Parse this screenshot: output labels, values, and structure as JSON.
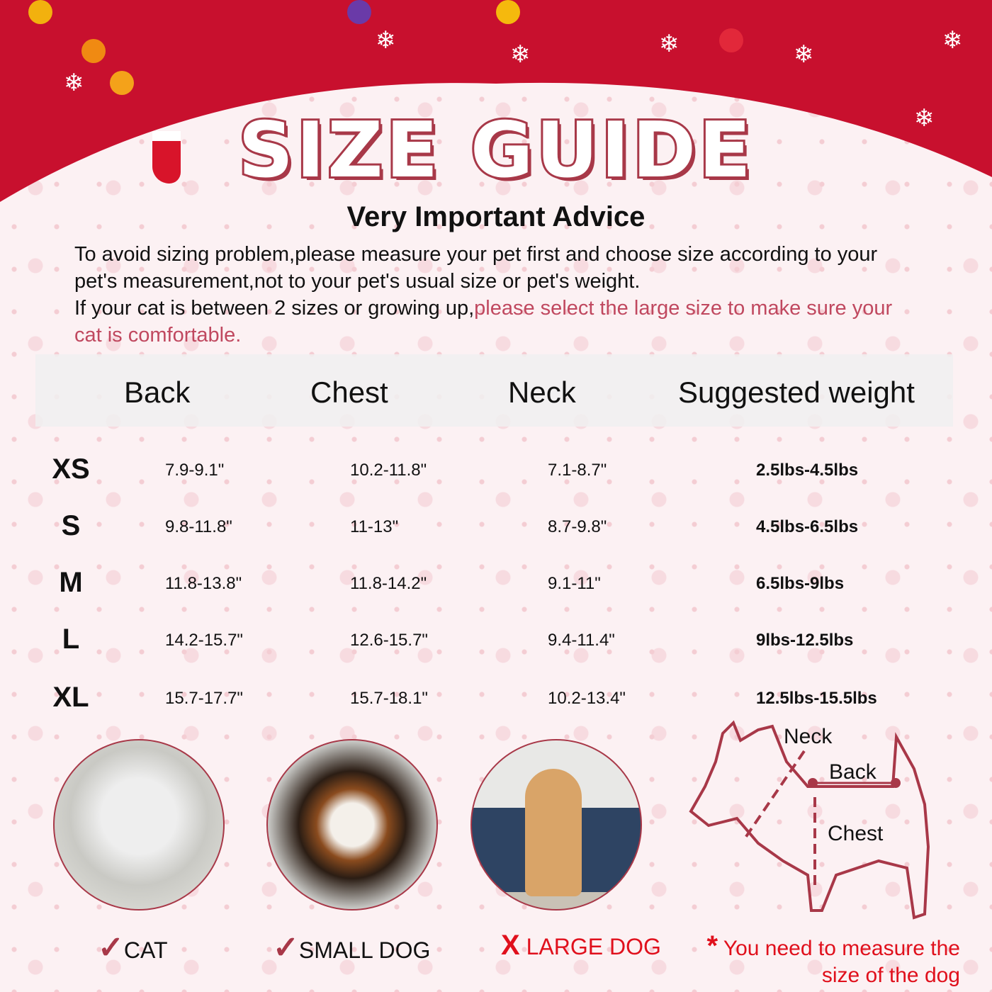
{
  "header": {
    "title": "SIZE GUIDE",
    "subtitle": "Very Important Advice"
  },
  "advice": {
    "line1": "To avoid sizing problem,please measure your pet first and choose size according to your pet's measurement,not to your pet's usual size or pet's weight.",
    "line2_black": "If your cat is between 2 sizes or growing up,",
    "line2_highlight": "please select the large size to make sure your cat is comfortable."
  },
  "table": {
    "columns": [
      "Back",
      "Chest",
      "Neck",
      "Suggested weight"
    ],
    "rows": [
      {
        "size": "XS",
        "back": "7.9-9.1\"",
        "chest": "10.2-11.8\"",
        "neck": "7.1-8.7\"",
        "weight": "2.5lbs-4.5lbs"
      },
      {
        "size": "S",
        "back": "9.8-11.8\"",
        "chest": "11-13\"",
        "neck": "8.7-9.8\"",
        "weight": "4.5lbs-6.5lbs"
      },
      {
        "size": "M",
        "back": "11.8-13.8\"",
        "chest": "11.8-14.2\"",
        "neck": "9.1-11\"",
        "weight": "6.5lbs-9lbs"
      },
      {
        "size": "L",
        "back": "14.2-15.7\"",
        "chest": "12.6-15.7\"",
        "neck": "9.4-11.4\"",
        "weight": "9lbs-12.5lbs"
      },
      {
        "size": "XL",
        "back": "15.7-17.7\"",
        "chest": "15.7-18.1\"",
        "neck": "10.2-13.4\"",
        "weight": "12.5lbs-15.5lbs"
      }
    ]
  },
  "suitability": [
    {
      "label": "CAT",
      "mark": "✓",
      "suitable": true,
      "photo": "kitten"
    },
    {
      "label": "SMALL DOG",
      "mark": "✓",
      "suitable": true,
      "photo": "beagle-puppy"
    },
    {
      "label": "LARGE DOG",
      "mark": "X",
      "suitable": false,
      "photo": "large-dog-on-sofa"
    }
  ],
  "diagram": {
    "neck": "Neck",
    "back": "Back",
    "chest": "Chest"
  },
  "note": {
    "star": "*",
    "text": "You need to measure the size of the dog"
  },
  "colors": {
    "header_red": "#c8102e",
    "accent": "#a83848",
    "highlight": "#c0485f",
    "warning": "#e0101c"
  }
}
